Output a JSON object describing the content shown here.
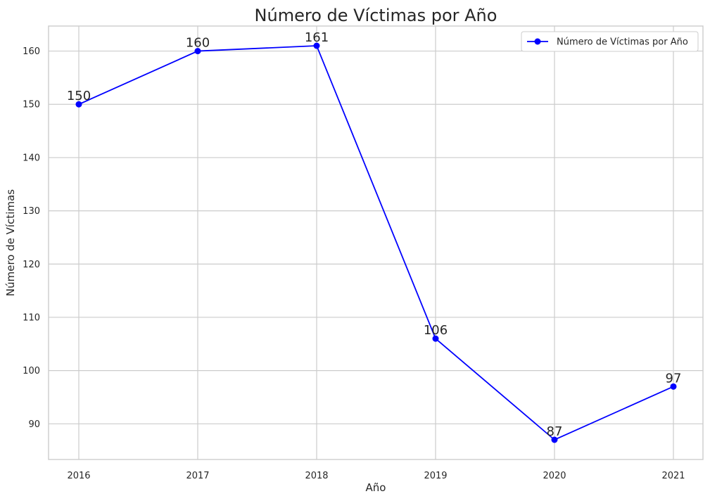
{
  "chart_data": {
    "type": "line",
    "title": "Número de Víctimas por Año",
    "xlabel": "Año",
    "ylabel": "Número de Víctimas",
    "categories": [
      "2016",
      "2017",
      "2018",
      "2019",
      "2020",
      "2021"
    ],
    "series": [
      {
        "name": "Número de Víctimas por Año",
        "color": "#0000ff",
        "values": [
          150,
          160,
          161,
          106,
          87,
          97
        ]
      }
    ],
    "ylim": [
      83.3,
      164.7
    ],
    "yticks": [
      90,
      100,
      110,
      120,
      130,
      140,
      150,
      160
    ],
    "grid": true,
    "legend_position": "top-right",
    "data_labels": true
  }
}
